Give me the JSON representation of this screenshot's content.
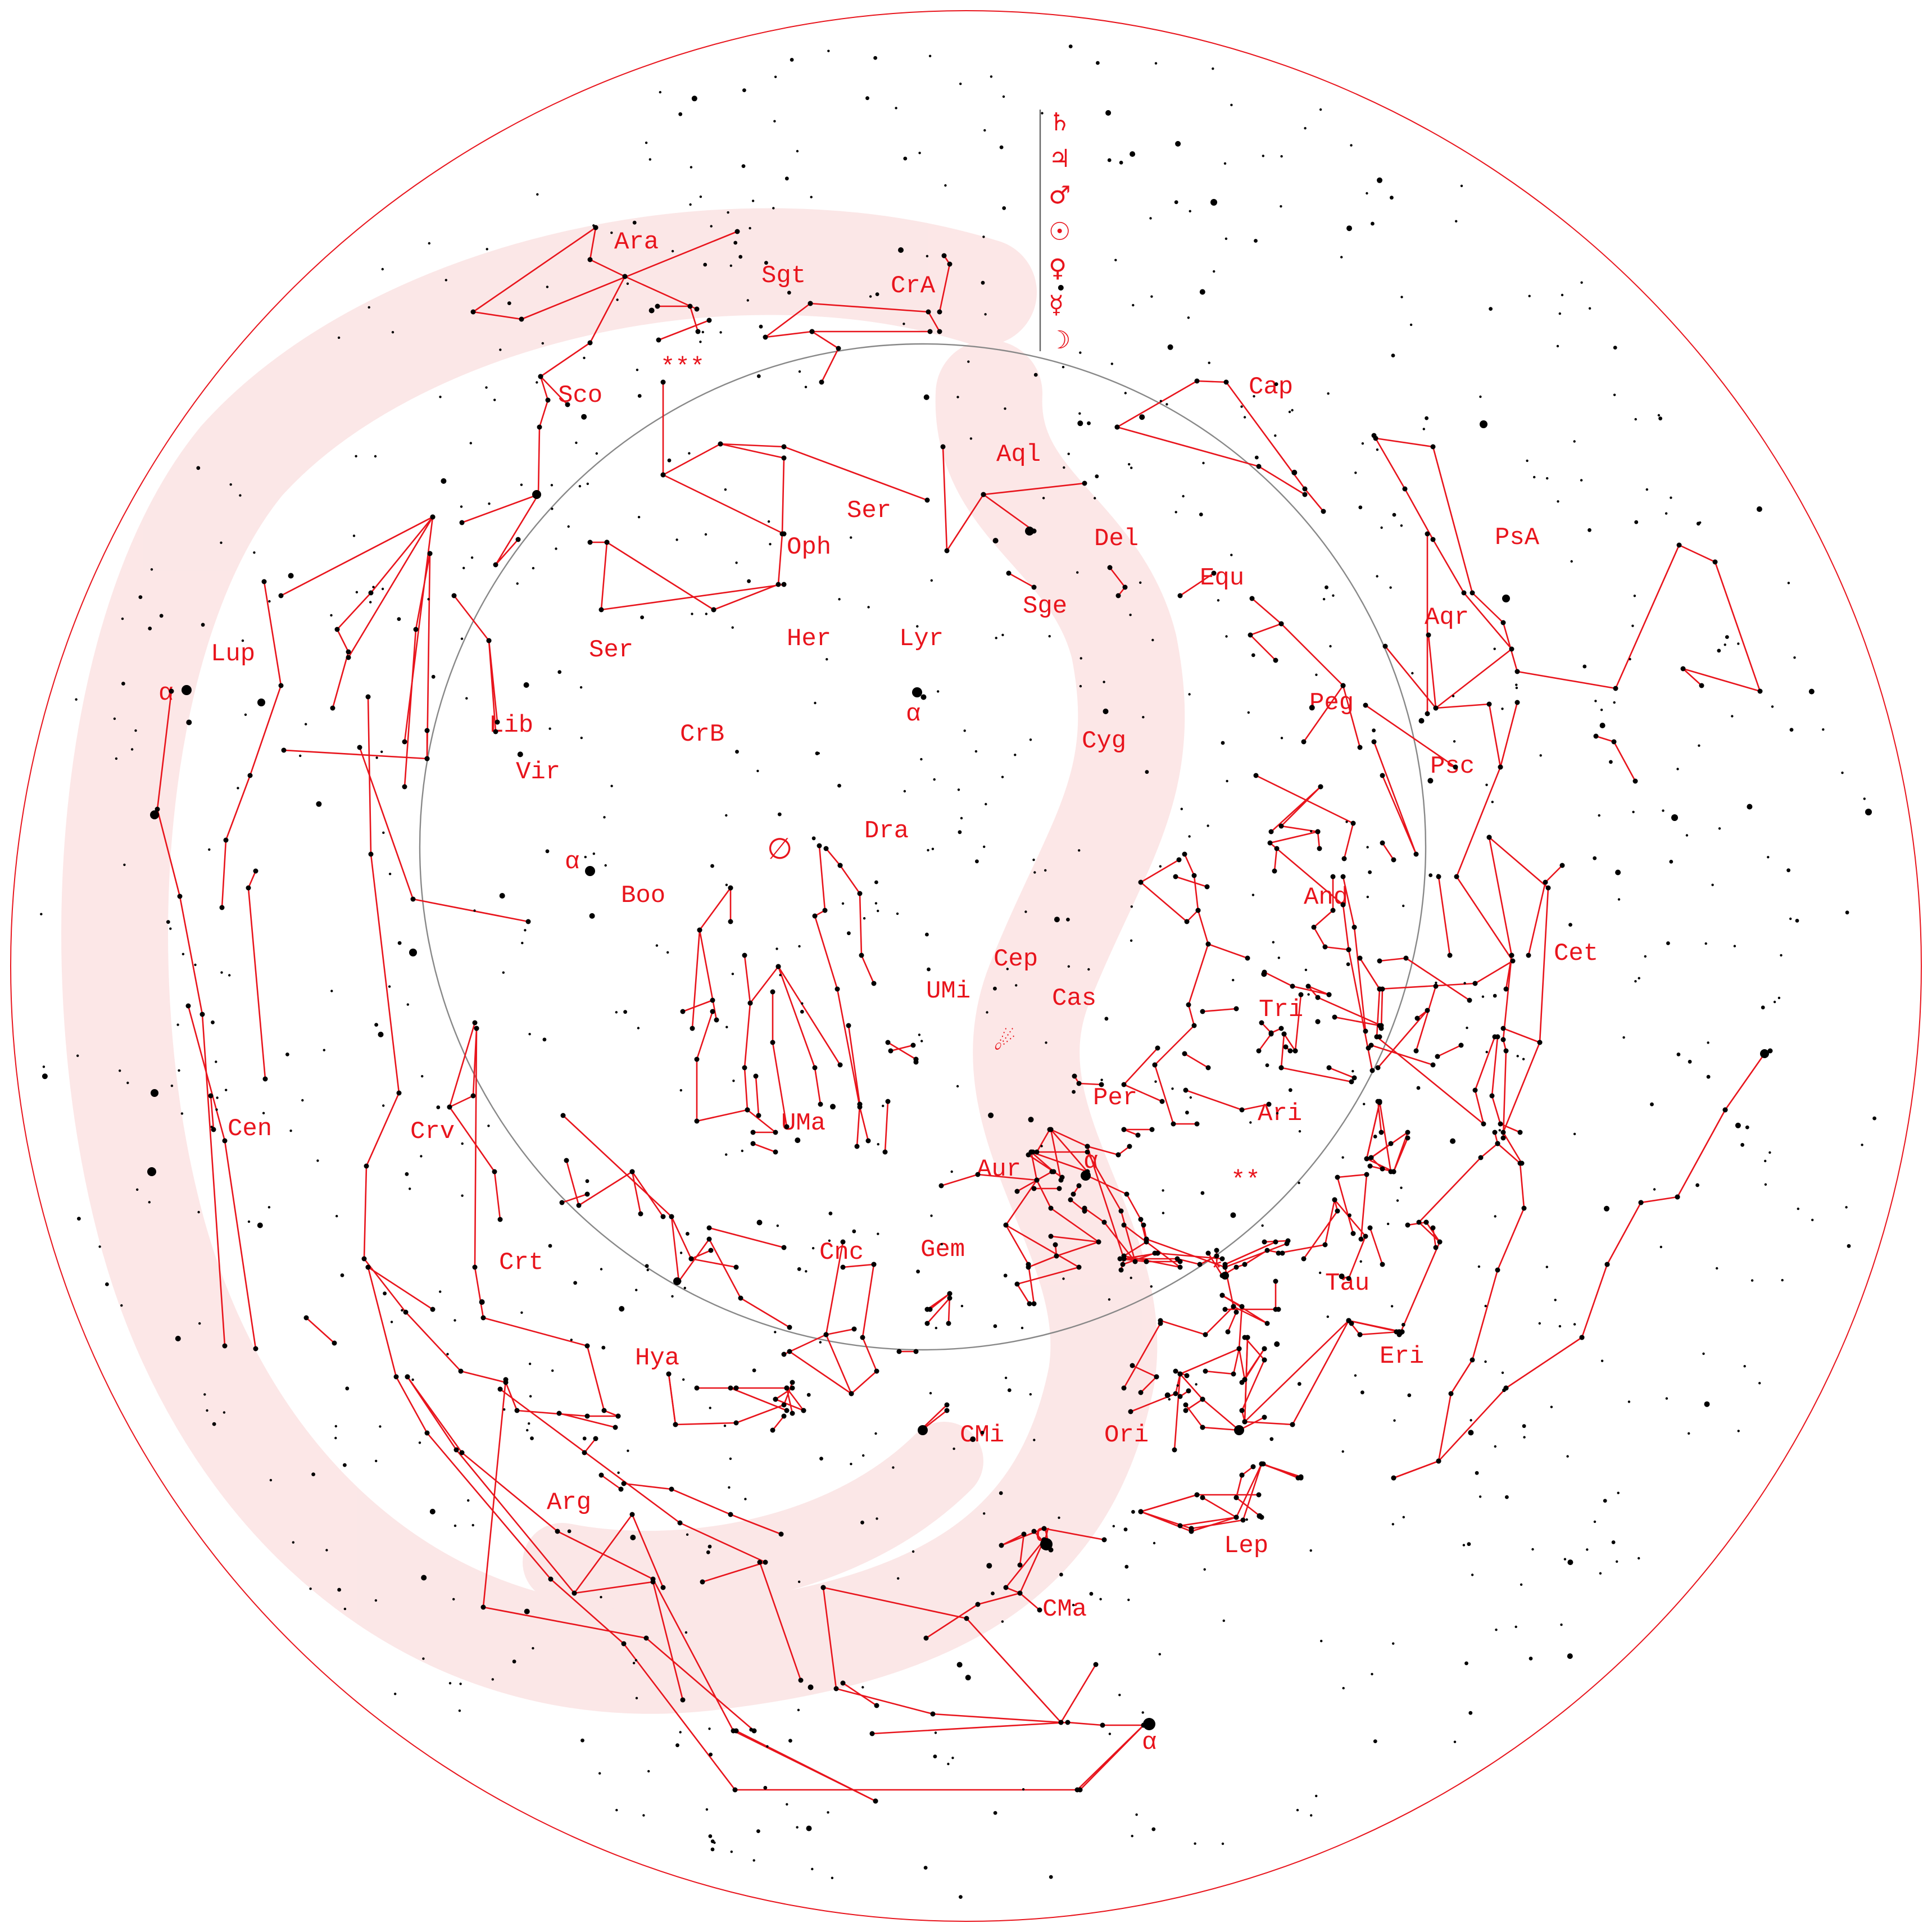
{
  "colors": {
    "accent": "#e8141c",
    "milky_way": "#fbe3e3",
    "circle": "#888888",
    "stars": "#000000"
  },
  "planet_symbols": [
    "♄",
    "♃",
    "♂",
    "☉",
    "♀",
    "☿",
    "☽"
  ],
  "special_marks": {
    "empty_set": "∅",
    "comet": "☄",
    "triple_star": "***",
    "double_star": "**",
    "single_star": "*"
  },
  "alpha_marker": "α",
  "constellations": [
    {
      "abbr": "Ara"
    },
    {
      "abbr": "Sgt"
    },
    {
      "abbr": "CrA"
    },
    {
      "abbr": "Sco"
    },
    {
      "abbr": "Cap"
    },
    {
      "abbr": "Aql"
    },
    {
      "abbr": "Ser"
    },
    {
      "abbr": "Oph"
    },
    {
      "abbr": "Del"
    },
    {
      "abbr": "Equ"
    },
    {
      "abbr": "PsA"
    },
    {
      "abbr": "Sge"
    },
    {
      "abbr": "Aqr"
    },
    {
      "abbr": "Lup"
    },
    {
      "abbr": "Her"
    },
    {
      "abbr": "Lyr"
    },
    {
      "abbr": "Ser"
    },
    {
      "abbr": "Peg"
    },
    {
      "abbr": "Lib"
    },
    {
      "abbr": "CrB"
    },
    {
      "abbr": "Cyg"
    },
    {
      "abbr": "Psc"
    },
    {
      "abbr": "Vir"
    },
    {
      "abbr": "Dra"
    },
    {
      "abbr": "Boo"
    },
    {
      "abbr": "And"
    },
    {
      "abbr": "Cet"
    },
    {
      "abbr": "Cep"
    },
    {
      "abbr": "UMi"
    },
    {
      "abbr": "Cas"
    },
    {
      "abbr": "Tri"
    },
    {
      "abbr": "Per"
    },
    {
      "abbr": "Ari"
    },
    {
      "abbr": "Cen"
    },
    {
      "abbr": "Crv"
    },
    {
      "abbr": "UMa"
    },
    {
      "abbr": "Aur"
    },
    {
      "abbr": "Crt"
    },
    {
      "abbr": "Cnc"
    },
    {
      "abbr": "Gem"
    },
    {
      "abbr": "Tau"
    },
    {
      "abbr": "Eri"
    },
    {
      "abbr": "Hya"
    },
    {
      "abbr": "CMi"
    },
    {
      "abbr": "Ori"
    },
    {
      "abbr": "Arg"
    },
    {
      "abbr": "Lep"
    },
    {
      "abbr": "CMa"
    }
  ]
}
